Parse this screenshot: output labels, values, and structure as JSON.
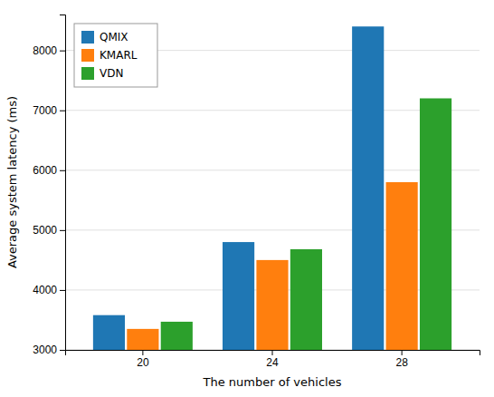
{
  "chart_data": {
    "type": "bar",
    "categories": [
      20,
      24,
      28
    ],
    "series": [
      {
        "name": "QMIX",
        "values": [
          3580,
          4800,
          8400
        ]
      },
      {
        "name": "KMARL",
        "values": [
          3350,
          4500,
          5800
        ]
      },
      {
        "name": "VDN",
        "values": [
          3470,
          4680,
          7200
        ]
      }
    ],
    "xlabel": "The number of vehicles",
    "ylabel": "Average system latency (ms)",
    "ylim": [
      3000,
      8600
    ],
    "yticks": [
      3000,
      4000,
      5000,
      6000,
      7000,
      8000
    ],
    "grid": true,
    "legend": "upper-left"
  }
}
